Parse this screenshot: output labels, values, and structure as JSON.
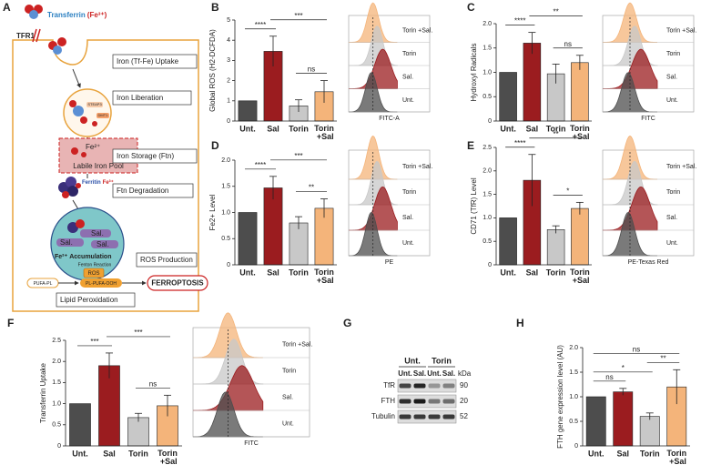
{
  "diagram": {
    "label": "A",
    "transferrin": "Transferrin",
    "transferrin_iron": "(Fe³⁺)",
    "receptor": "TFR1",
    "steap3": "STEAP3",
    "dmt1": "DMT1",
    "steps": [
      "Iron (Tf-Fe) Uptake",
      "Iron Liberation",
      "Iron Storage (Ftn)",
      "Ftn Degradation",
      "ROS Production",
      "Lipid Peroxidation"
    ],
    "pool_iron": "Fe²⁺",
    "pool": "Labile Iron Pool",
    "ferritin": "Ferritin",
    "ferritin_iron": "Fe³⁺",
    "sal": [
      "Sal.",
      "Sal.",
      "Sal."
    ],
    "accumulation_iron": "Fe²⁺",
    "accumulation": "Accumulation",
    "fenton": "Fenton Reaction",
    "ros": "ROS",
    "lipid": "PUFA-PL",
    "peroxide": "PL-PUFA-OOH",
    "outcome": "FERROPTOSIS"
  },
  "chart_data": [
    {
      "type": "bar",
      "label": "B",
      "ylabel": "Global ROS (H2-DCFDA)",
      "categories": [
        "Unt.",
        "Sal",
        "Torin",
        "Torin +Sal"
      ],
      "values": [
        1,
        3.45,
        0.75,
        1.45
      ],
      "errors": [
        0,
        0.75,
        0.3,
        0.55
      ],
      "colors": [
        "#4d4d4d",
        "#9b1c1f",
        "#c8c8c8",
        "#f4b47a"
      ],
      "ylim": [
        0,
        5
      ],
      "yticks": [
        0,
        1,
        2,
        3,
        4,
        5
      ],
      "significance": [
        {
          "pair": [
            "Unt.",
            "Sal"
          ],
          "label": "****"
        },
        {
          "pair": [
            "Torin",
            "Torin +Sal"
          ],
          "label": "ns"
        },
        {
          "pair": [
            "Sal",
            "Torin +Sal"
          ],
          "label": "***"
        }
      ],
      "flow": {
        "labels": [
          "Torin +Sal.",
          "Torin",
          "Sal.",
          "Unt."
        ],
        "xlabel": "FITC-A"
      }
    },
    {
      "type": "bar",
      "label": "C",
      "ylabel": "Hydroxyl Radicals",
      "categories": [
        "Unt.",
        "Sal",
        "Torin",
        "Torin +Sal"
      ],
      "values": [
        1,
        1.6,
        0.97,
        1.2
      ],
      "errors": [
        0,
        0.22,
        0.2,
        0.15
      ],
      "colors": [
        "#4d4d4d",
        "#9b1c1f",
        "#c8c8c8",
        "#f4b47a"
      ],
      "ylim": [
        0,
        2
      ],
      "yticks": [
        0,
        0.5,
        {
          "value": 1,
          "label": "1.0"
        },
        1.5,
        {
          "value": 2,
          "label": "2.0"
        }
      ],
      "significance": [
        {
          "pair": [
            "Unt.",
            "Sal"
          ],
          "label": "****"
        },
        {
          "pair": [
            "Torin",
            "Torin +Sal"
          ],
          "label": "ns"
        },
        {
          "pair": [
            "Sal",
            "Torin +Sal"
          ],
          "label": "**"
        }
      ],
      "flow": {
        "labels": [
          "Torin +Sal.",
          "Torin",
          "Sal.",
          "Unt."
        ],
        "xlabel": "FITC"
      }
    },
    {
      "type": "bar",
      "label": "D",
      "ylabel": "Fe2+ Level",
      "categories": [
        "Unt.",
        "Sal",
        "Torin",
        "Torin +Sal"
      ],
      "values": [
        1,
        1.47,
        0.8,
        1.08
      ],
      "errors": [
        0,
        0.22,
        0.12,
        0.18
      ],
      "colors": [
        "#4d4d4d",
        "#9b1c1f",
        "#c8c8c8",
        "#f4b47a"
      ],
      "ylim": [
        0,
        2
      ],
      "yticks": [
        0,
        0.5,
        {
          "value": 1,
          "label": "1.0"
        },
        1.5,
        {
          "value": 2,
          "label": "2.0"
        }
      ],
      "significance": [
        {
          "pair": [
            "Unt.",
            "Sal"
          ],
          "label": "****"
        },
        {
          "pair": [
            "Torin",
            "Torin +Sal"
          ],
          "label": "**"
        },
        {
          "pair": [
            "Sal",
            "Torin +Sal"
          ],
          "label": "***"
        }
      ],
      "flow": {
        "labels": [
          "Torin +Sal.",
          "Torin",
          "Sal.",
          "Unt."
        ],
        "xlabel": "PE"
      }
    },
    {
      "type": "bar",
      "label": "E",
      "ylabel": "CD71 (TfR) Level",
      "categories": [
        "Unt.",
        "Sal",
        "Torin",
        "Torin +Sal"
      ],
      "values": [
        1,
        1.8,
        0.75,
        1.2
      ],
      "errors": [
        0,
        0.55,
        0.08,
        0.13
      ],
      "colors": [
        "#4d4d4d",
        "#9b1c1f",
        "#c8c8c8",
        "#f4b47a"
      ],
      "ylim": [
        0,
        2.5
      ],
      "yticks": [
        0,
        0.5,
        {
          "value": 1,
          "label": "1.0"
        },
        1.5,
        {
          "value": 2,
          "label": "2.0"
        },
        2.5
      ],
      "significance": [
        {
          "pair": [
            "Unt.",
            "Sal"
          ],
          "label": "****"
        },
        {
          "pair": [
            "Torin",
            "Torin +Sal"
          ],
          "label": "*"
        },
        {
          "pair": [
            "Sal",
            "Torin +Sal"
          ],
          "label": "**"
        }
      ],
      "flow": {
        "labels": [
          "Torin +Sal.",
          "Torin",
          "Sal.",
          "Unt."
        ],
        "xlabel": "PE-Texas Red"
      }
    },
    {
      "type": "bar",
      "label": "F",
      "ylabel": "Transferrin Uptake",
      "categories": [
        "Unt.",
        "Sal",
        "Torin",
        "Torin +Sal"
      ],
      "values": [
        1,
        1.9,
        0.67,
        0.95
      ],
      "errors": [
        0,
        0.3,
        0.1,
        0.25
      ],
      "colors": [
        "#4d4d4d",
        "#9b1c1f",
        "#c8c8c8",
        "#f4b47a"
      ],
      "ylim": [
        0,
        2.5
      ],
      "yticks": [
        0,
        0.5,
        {
          "value": 1,
          "label": "1.0"
        },
        1.5,
        {
          "value": 2,
          "label": "2.0"
        },
        2.5
      ],
      "significance": [
        {
          "pair": [
            "Unt.",
            "Sal"
          ],
          "label": "***"
        },
        {
          "pair": [
            "Torin",
            "Torin +Sal"
          ],
          "label": "ns"
        },
        {
          "pair": [
            "Sal",
            "Torin +Sal"
          ],
          "label": "***"
        }
      ],
      "flow": {
        "labels": [
          "Torin +Sal.",
          "Torin",
          "Sal.",
          "Unt."
        ],
        "xlabel": "FITC"
      }
    },
    {
      "type": "bar",
      "label": "H",
      "ylabel": "FTH gene expression level (AU)",
      "categories": [
        "Unt.",
        "Sal",
        "Torin",
        "Torin +Sal"
      ],
      "values": [
        1,
        1.1,
        0.6,
        1.2
      ],
      "errors": [
        0,
        0.07,
        0.07,
        0.35
      ],
      "colors": [
        "#4d4d4d",
        "#9b1c1f",
        "#c8c8c8",
        "#f4b47a"
      ],
      "ylim": [
        0,
        2
      ],
      "yticks": [
        0,
        0.5,
        {
          "value": 1,
          "label": "1.0"
        },
        1.5,
        {
          "value": 2,
          "label": "2.0"
        }
      ],
      "significance": [
        {
          "pair": [
            "Unt.",
            "Sal"
          ],
          "label": "ns"
        },
        {
          "pair": [
            "Unt.",
            "Torin"
          ],
          "label": "*"
        },
        {
          "pair": [
            "Torin",
            "Torin +Sal"
          ],
          "label": "**"
        },
        {
          "pair": [
            "Unt.",
            "Torin +Sal"
          ],
          "label": "ns"
        }
      ]
    }
  ],
  "blot": {
    "label": "G",
    "groups": [
      "Unt.",
      "Torin"
    ],
    "lanes": [
      "Unt.",
      "Sal.",
      "Unt.",
      "Sal."
    ],
    "unit": "kDa",
    "rows": [
      {
        "name": "TfR",
        "kda": 90
      },
      {
        "name": "FTH",
        "kda": 20
      },
      {
        "name": "Tubulin",
        "kda": 52
      }
    ]
  }
}
